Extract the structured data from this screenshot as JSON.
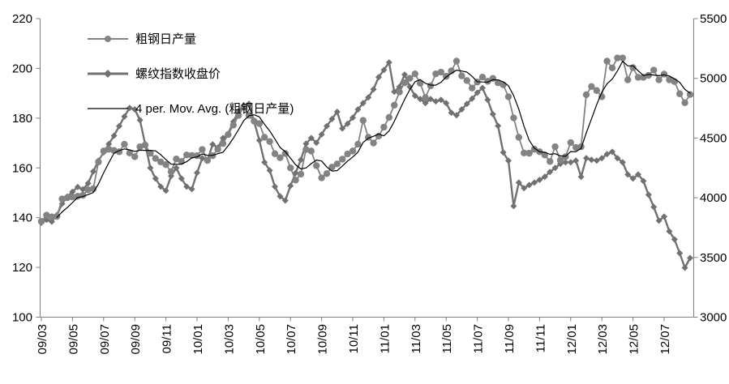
{
  "figure": {
    "background": "#ffffff",
    "axis_color": "#808080",
    "text_color": "#000000"
  },
  "chart_data": {
    "type": "line",
    "title": "",
    "xlabel": "",
    "ylabel_left": "",
    "ylabel_right": "",
    "grid": false,
    "legend_position": "top-left",
    "points_per_month": 3,
    "x_tick_labels": [
      "09/03",
      "09/05",
      "09/07",
      "09/09",
      "09/11",
      "10/01",
      "10/03",
      "10/05",
      "10/07",
      "10/09",
      "10/11",
      "11/01",
      "11/03",
      "11/05",
      "11/07",
      "11/09",
      "11/11",
      "12/01",
      "12/03",
      "12/05",
      "12/07"
    ],
    "left_axis": {
      "min": 100,
      "max": 220,
      "ticks": [
        220,
        200,
        180,
        160,
        140,
        120,
        100
      ]
    },
    "right_axis": {
      "min": 3000,
      "max": 5500,
      "ticks": [
        5500,
        5000,
        4500,
        4000,
        3500,
        3000
      ]
    },
    "series": [
      {
        "name": "粗钢日产量",
        "axis": "left",
        "marker": "circle",
        "color": "#838383",
        "line_width": 1.8,
        "values": [
          138.5,
          141,
          140.3,
          140.5,
          147.5,
          148,
          148.3,
          148.6,
          149,
          151.2,
          151.6,
          162.4,
          166.8,
          167.5,
          167,
          166.5,
          169.5,
          166,
          164.5,
          168.5,
          169.2,
          165.9,
          163.8,
          162.4,
          161.3,
          158.5,
          163.6,
          162.6,
          165.2,
          165,
          164.9,
          167.4,
          163,
          164.9,
          167.5,
          169.8,
          173.4,
          177.2,
          181.1,
          184.4,
          181.1,
          178.8,
          177.8,
          172.3,
          170.6,
          165.7,
          164.1,
          165.8,
          160,
          155.1,
          157.5,
          167.4,
          166.8,
          160.9,
          156,
          157.7,
          160.3,
          161.6,
          163.5,
          165.6,
          166.8,
          169.5,
          179.1,
          172.3,
          170,
          172.8,
          176.4,
          180.3,
          185.2,
          190.5,
          194.2,
          196,
          197.8,
          194,
          188.3,
          193,
          197.8,
          198.5,
          196.8,
          199,
          202.9,
          197,
          195.1,
          192.1,
          194.5,
          196.5,
          194.8,
          196,
          194.2,
          193.4,
          188.6,
          180.1,
          172.3,
          166,
          165.9,
          167.5,
          166.5,
          165.2,
          162.6,
          168.5,
          163.1,
          164.5,
          170.2,
          168.2,
          168.5,
          189.4,
          192.7,
          191.1,
          188.6,
          202.9,
          200.2,
          204.2,
          204.2,
          195.4,
          200.3,
          196.4,
          196.4,
          197.2,
          199.3,
          195.4,
          197.7,
          195.4,
          194.7,
          189.8,
          186.2,
          189.5
        ]
      },
      {
        "name": "螺纹指数收盘价",
        "axis": "right",
        "marker": "diamond",
        "color": "#717171",
        "line_width": 2.4,
        "values": [
          3790,
          3815,
          3800,
          3855,
          3950,
          4010,
          4050,
          4090,
          4070,
          4120,
          4220,
          4310,
          4380,
          4450,
          4520,
          4600,
          4680,
          4752,
          4740,
          4650,
          4450,
          4250,
          4161,
          4093,
          4059,
          4182,
          4250,
          4161,
          4093,
          4073,
          4209,
          4331,
          4311,
          4447,
          4420,
          4500,
          4535,
          4637,
          4725,
          4773,
          4786,
          4637,
          4481,
          4297,
          4229,
          4093,
          4012,
          3977,
          4100,
          4208,
          4317,
          4453,
          4500,
          4460,
          4530,
          4600,
          4660,
          4720,
          4580,
          4620,
          4671,
          4739,
          4793,
          4840,
          4908,
          5010,
          5070,
          5133,
          4888,
          4929,
          5031,
          4929,
          4854,
          4827,
          4793,
          4827,
          4807,
          4820,
          4793,
          4712,
          4691,
          4740,
          4786,
          4830,
          4880,
          4920,
          4820,
          4700,
          4602,
          4380,
          4310,
          3930,
          4127,
          4080,
          4107,
          4127,
          4150,
          4175,
          4216,
          4250,
          4284,
          4297,
          4297,
          4311,
          4175,
          4331,
          4318,
          4311,
          4331,
          4365,
          4385,
          4331,
          4297,
          4195,
          4161,
          4195,
          4141,
          4025,
          3923,
          3808,
          3842,
          3719,
          3651,
          3536,
          3414,
          3495
        ]
      },
      {
        "name": "4 per. Mov. Avg. (粗钢日产量)",
        "axis": "left",
        "marker": "none",
        "color": "#000000",
        "line_width": 1.2,
        "derived": "trailing_moving_average",
        "window": 4,
        "source_series": 0
      }
    ]
  }
}
